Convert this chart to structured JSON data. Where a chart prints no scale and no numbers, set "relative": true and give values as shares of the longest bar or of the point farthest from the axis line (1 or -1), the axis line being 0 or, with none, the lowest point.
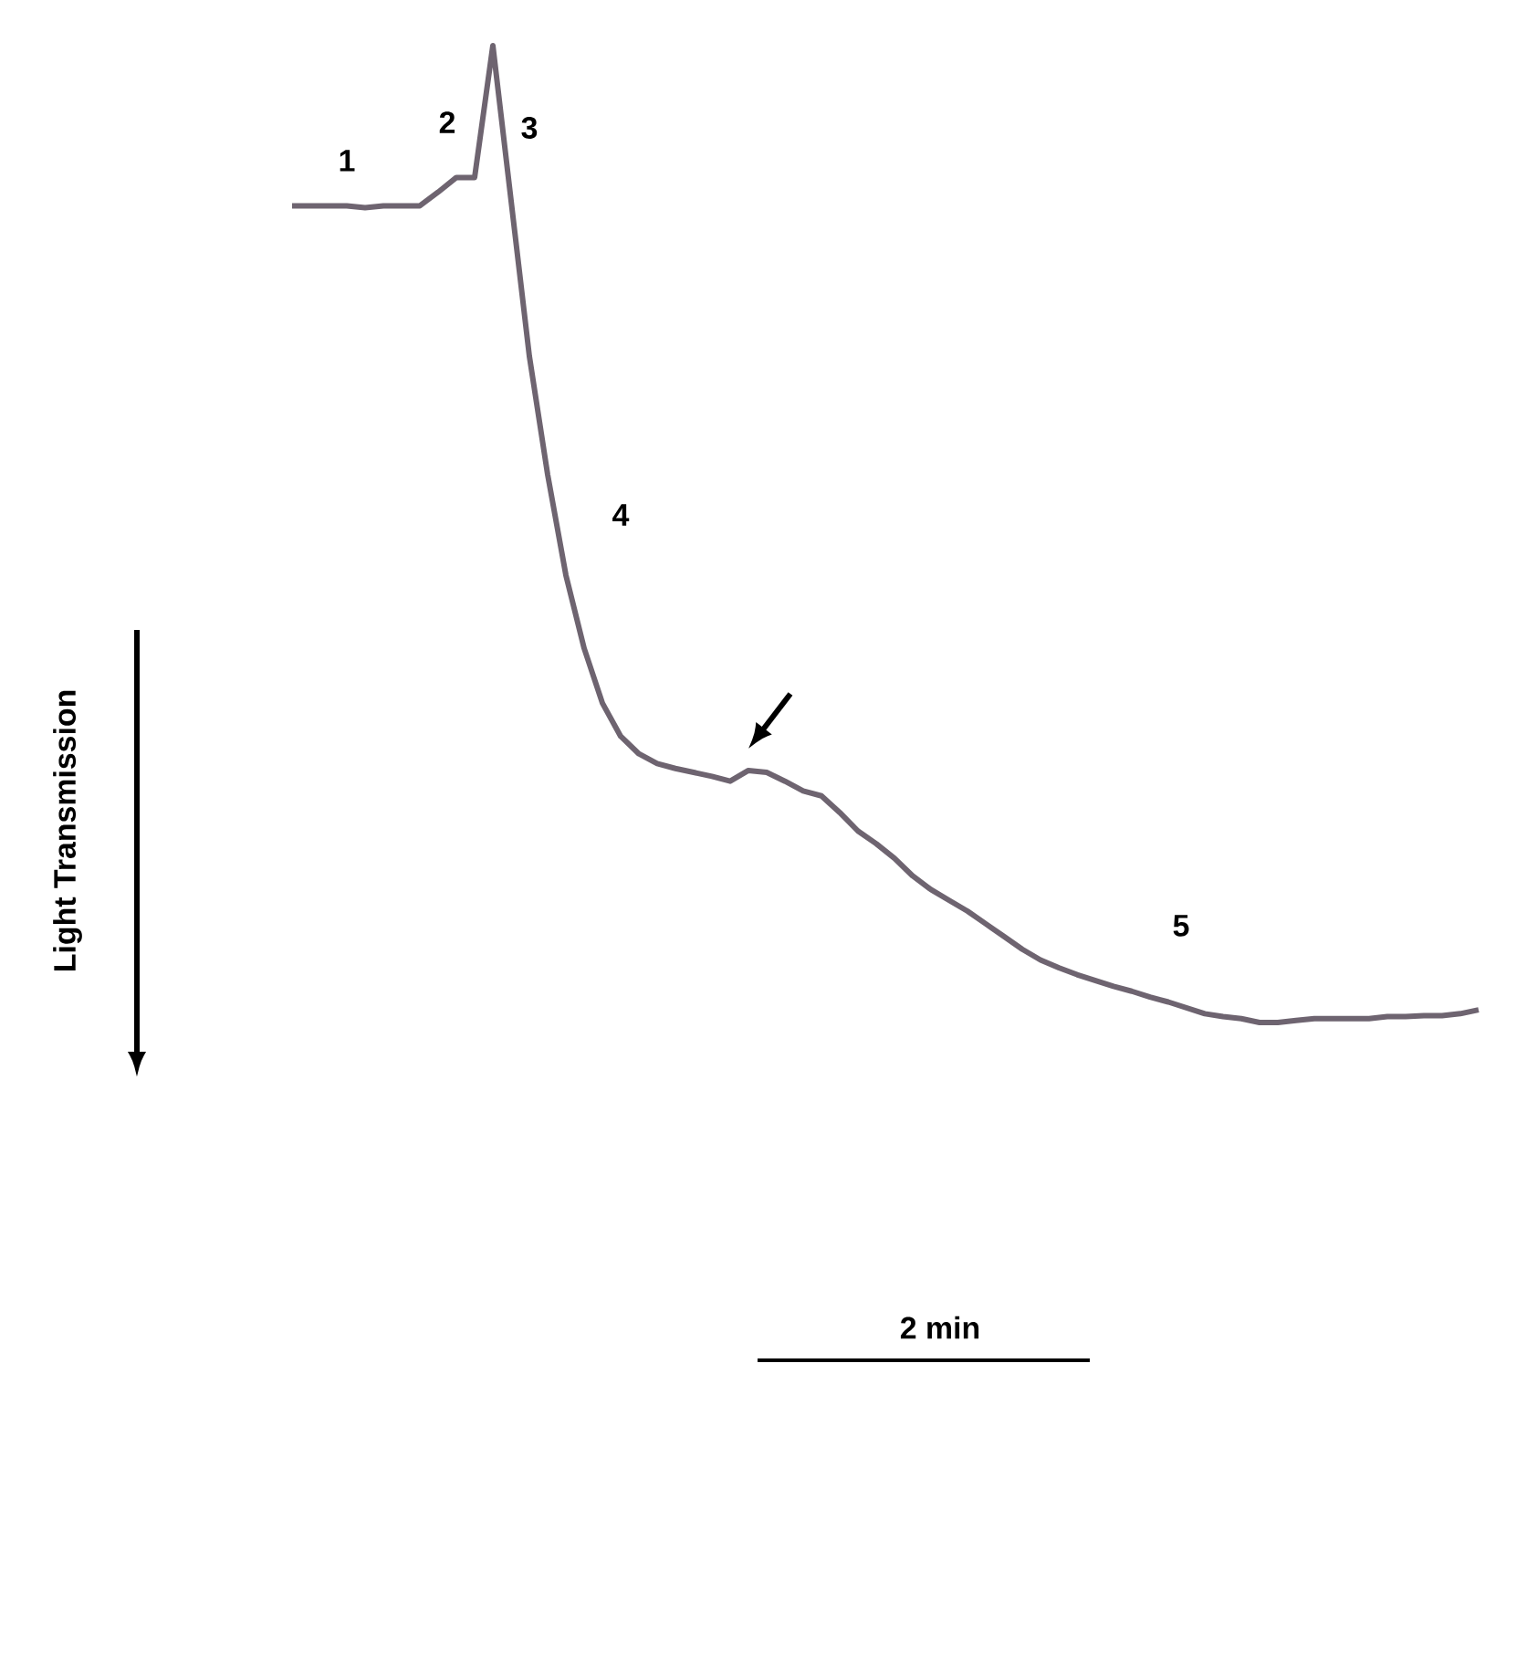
{
  "chart_data": {
    "type": "line",
    "relative": true,
    "line_style": "solid",
    "marker": "none",
    "categories": [
      null,
      null,
      null,
      null,
      null,
      null,
      null,
      null,
      null,
      null,
      null,
      null,
      null,
      null,
      null,
      null,
      null,
      null,
      null,
      null,
      null,
      null,
      null,
      null,
      null,
      null,
      null,
      null,
      null,
      null,
      null,
      null,
      null,
      null,
      null,
      null,
      null,
      null,
      null,
      null,
      null,
      null,
      null,
      null,
      null,
      null,
      null,
      null,
      null,
      null,
      null,
      null,
      null,
      null,
      null,
      null,
      null,
      null,
      null,
      null,
      null,
      null,
      null,
      null,
      null,
      null
    ],
    "series": [
      {
        "color": "#6e6470",
        "values": [
          0.836,
          0.836,
          0.836,
          0.836,
          0.834,
          0.836,
          0.836,
          0.836,
          0.85,
          0.865,
          0.865,
          1.0,
          0.841,
          0.682,
          0.561,
          0.458,
          0.383,
          0.327,
          0.293,
          0.275,
          0.265,
          0.26,
          0.256,
          0.252,
          0.247,
          0.258,
          0.256,
          0.247,
          0.237,
          0.232,
          0.215,
          0.196,
          0.183,
          0.168,
          0.15,
          0.136,
          0.125,
          0.114,
          0.101,
          0.088,
          0.075,
          0.064,
          0.056,
          0.049,
          0.043,
          0.037,
          0.032,
          0.026,
          0.021,
          0.015,
          0.009,
          0.006,
          0.004,
          0.0,
          0.0,
          0.002,
          0.004,
          0.004,
          0.004,
          0.004,
          0.006,
          0.006,
          0.007,
          0.007,
          0.009,
          0.013
        ]
      }
    ],
    "annotations": [
      "1",
      "2",
      "3",
      "4",
      "5",
      "2 min",
      "Light Transmission"
    ]
  }
}
